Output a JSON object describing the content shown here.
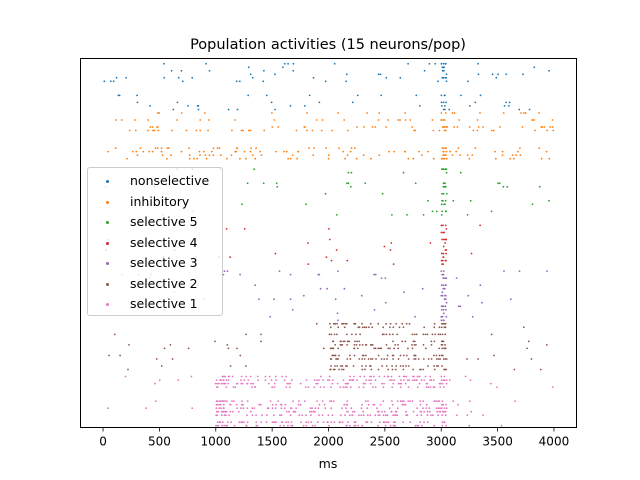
{
  "chart_data": {
    "type": "scatter",
    "title": "Population activities (15 neurons/pop)",
    "xlabel": "ms",
    "ylabel": "",
    "xlim": [
      -200,
      4200
    ],
    "ylim": [
      0,
      105
    ],
    "xticks": [
      0,
      500,
      1000,
      1500,
      2000,
      2500,
      3000,
      3500,
      4000
    ],
    "xtick_labels": [
      "0",
      "500",
      "1000",
      "1500",
      "2000",
      "2500",
      "3000",
      "3500",
      "4000"
    ],
    "yticks_shown": false,
    "legend_position": "center-left",
    "marker": "dot",
    "series": [
      {
        "name": "nonselective",
        "color": "#1f77b4",
        "row_range": [
          90,
          105
        ],
        "base_rate": 0.02,
        "bursts": [
          [
            3000,
            3050,
            0.5
          ]
        ]
      },
      {
        "name": "inhibitory",
        "color": "#ff7f0e",
        "row_range": [
          75,
          90
        ],
        "base_rate": 0.058,
        "bursts": [
          [
            3000,
            3060,
            0.55
          ],
          [
            3300,
            3400,
            0.12
          ],
          [
            3800,
            4000,
            0.1
          ]
        ]
      },
      {
        "name": "selective 5",
        "color": "#2ca02c",
        "row_range": [
          60,
          75
        ],
        "base_rate": 0.01,
        "bursts": [
          [
            3000,
            3050,
            0.55
          ]
        ]
      },
      {
        "name": "selective 4",
        "color": "#d62728",
        "row_range": [
          45,
          60
        ],
        "base_rate": 0.007,
        "bursts": [
          [
            3000,
            3050,
            0.45
          ]
        ]
      },
      {
        "name": "selective 3",
        "color": "#9467bd",
        "row_range": [
          30,
          45
        ],
        "base_rate": 0.009,
        "bursts": [
          [
            3000,
            3050,
            0.5
          ]
        ]
      },
      {
        "name": "selective 2",
        "color": "#8c564b",
        "row_range": [
          15,
          30
        ],
        "base_rate": 0.014,
        "bursts": [
          [
            2000,
            3000,
            0.18
          ],
          [
            2000,
            2100,
            0.35
          ],
          [
            3000,
            3050,
            0.5
          ]
        ]
      },
      {
        "name": "selective 1",
        "color": "#e377c2",
        "row_range": [
          0,
          15
        ],
        "base_rate": 0.016,
        "bursts": [
          [
            1000,
            3000,
            0.2
          ],
          [
            1000,
            1100,
            0.4
          ],
          [
            3000,
            3050,
            0.5
          ]
        ]
      }
    ]
  }
}
